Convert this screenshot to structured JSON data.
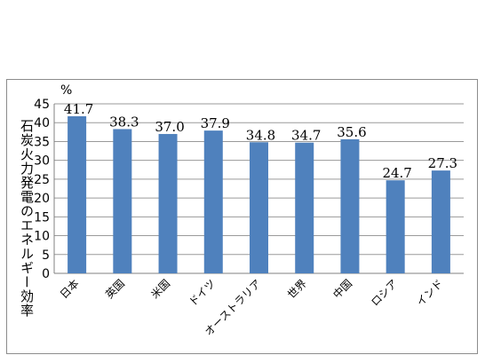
{
  "chart_data": {
    "type": "bar",
    "title": "",
    "unit": "%",
    "ylabel": "石炭火力発電のエネルギー効率",
    "xlabel": "",
    "categories": [
      "日本",
      "英国",
      "米国",
      "ドイツ",
      "オーストラリア",
      "世界",
      "中国",
      "ロシア",
      "インド"
    ],
    "values": [
      41.7,
      38.3,
      37.0,
      37.9,
      34.8,
      34.7,
      35.6,
      24.7,
      27.3
    ],
    "value_labels": [
      "41.7",
      "38.3",
      "37.0",
      "37.9",
      "34.8",
      "34.7",
      "35.6",
      "24.7",
      "27.3"
    ],
    "ylim": [
      0,
      45
    ],
    "yticks": [
      0,
      5,
      10,
      15,
      20,
      25,
      30,
      35,
      40,
      45
    ],
    "grid": true,
    "legend": "none",
    "bar_color": "#4f81bd"
  }
}
